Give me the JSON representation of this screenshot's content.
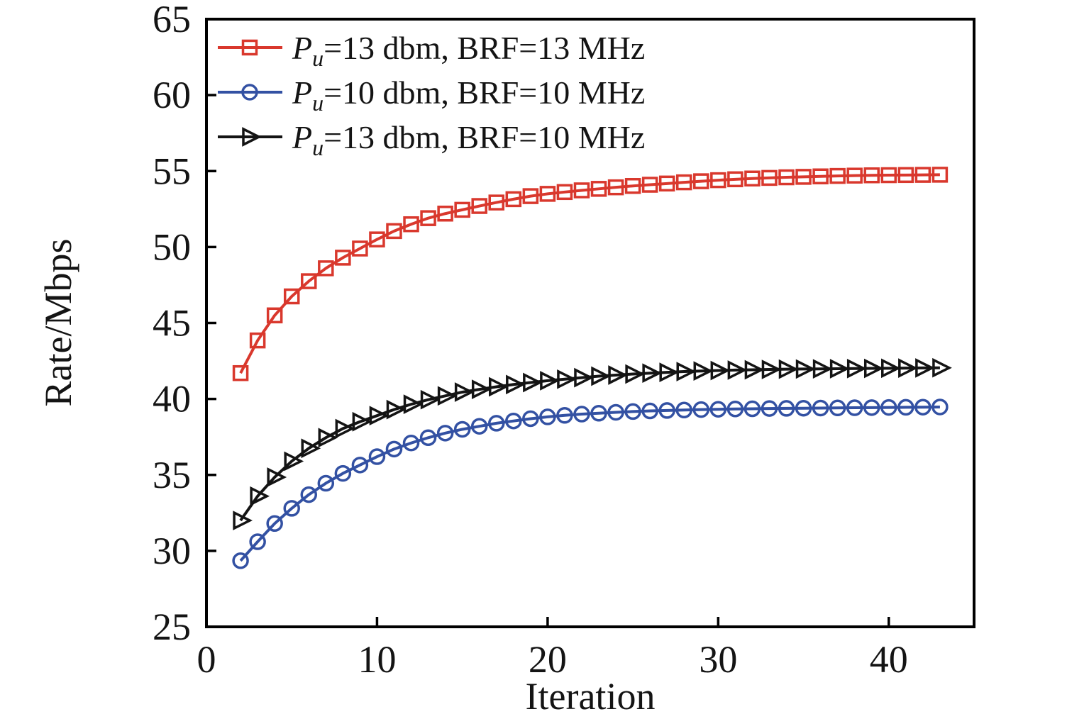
{
  "chart_data": {
    "type": "line",
    "title": "",
    "xlabel": "Iteration",
    "ylabel": "Rate/Mbps",
    "xlim": [
      0,
      45
    ],
    "ylim": [
      25,
      65
    ],
    "xticks": [
      0,
      10,
      20,
      30,
      40
    ],
    "yticks": [
      25,
      30,
      35,
      40,
      45,
      50,
      55,
      60,
      65
    ],
    "grid": false,
    "legend_position": "top-left",
    "axis_color": "#000000",
    "x": [
      2,
      3,
      4,
      5,
      6,
      7,
      8,
      9,
      10,
      11,
      12,
      13,
      14,
      15,
      16,
      17,
      18,
      19,
      20,
      21,
      22,
      23,
      24,
      25,
      26,
      27,
      28,
      29,
      30,
      31,
      32,
      33,
      34,
      35,
      36,
      37,
      38,
      39,
      40,
      41,
      42,
      43
    ],
    "series": [
      {
        "name": "Pu=13 dbm, BRF=13 MHz",
        "legend": {
          "var": "P",
          "sub": "u",
          "rest": "=13 dbm, BRF=13 MHz"
        },
        "color": "#d9382d",
        "marker": "square",
        "values": [
          41.7,
          43.85,
          45.5,
          46.75,
          47.75,
          48.6,
          49.3,
          49.9,
          50.5,
          51.05,
          51.5,
          51.9,
          52.2,
          52.45,
          52.7,
          52.93,
          53.15,
          53.35,
          53.5,
          53.62,
          53.73,
          53.83,
          53.93,
          54.02,
          54.1,
          54.18,
          54.26,
          54.33,
          54.4,
          54.46,
          54.51,
          54.55,
          54.59,
          54.62,
          54.65,
          54.68,
          54.7,
          54.72,
          54.73,
          54.74,
          54.75,
          54.76
        ]
      },
      {
        "name": "Pu=10 dbm, BRF=10 MHz",
        "legend": {
          "var": "P",
          "sub": "u",
          "rest": "=10 dbm, BRF=10 MHz"
        },
        "color": "#3351a3",
        "marker": "circle",
        "values": [
          29.35,
          30.6,
          31.8,
          32.8,
          33.7,
          34.45,
          35.1,
          35.65,
          36.2,
          36.7,
          37.1,
          37.45,
          37.75,
          38.0,
          38.2,
          38.4,
          38.55,
          38.7,
          38.82,
          38.92,
          39.0,
          39.06,
          39.12,
          39.17,
          39.21,
          39.24,
          39.27,
          39.3,
          39.32,
          39.34,
          39.35,
          39.37,
          39.38,
          39.39,
          39.4,
          39.41,
          39.42,
          39.43,
          39.44,
          39.45,
          39.46,
          39.47
        ]
      },
      {
        "name": "Pu=13 dbm, BRF=10 MHz",
        "legend": {
          "var": "P",
          "sub": "u",
          "rest": "=13 dbm, BRF=10 MHz"
        },
        "color": "#141414",
        "marker": "triangle-right",
        "values": [
          32.0,
          33.6,
          34.85,
          35.9,
          36.75,
          37.45,
          38.05,
          38.5,
          38.9,
          39.3,
          39.65,
          39.95,
          40.2,
          40.45,
          40.63,
          40.8,
          40.95,
          41.08,
          41.2,
          41.3,
          41.4,
          41.5,
          41.57,
          41.64,
          41.7,
          41.75,
          41.8,
          41.84,
          41.87,
          41.9,
          41.92,
          41.94,
          41.96,
          41.97,
          41.98,
          41.99,
          42.0,
          42.01,
          42.02,
          42.03,
          42.04,
          42.05
        ]
      }
    ]
  }
}
